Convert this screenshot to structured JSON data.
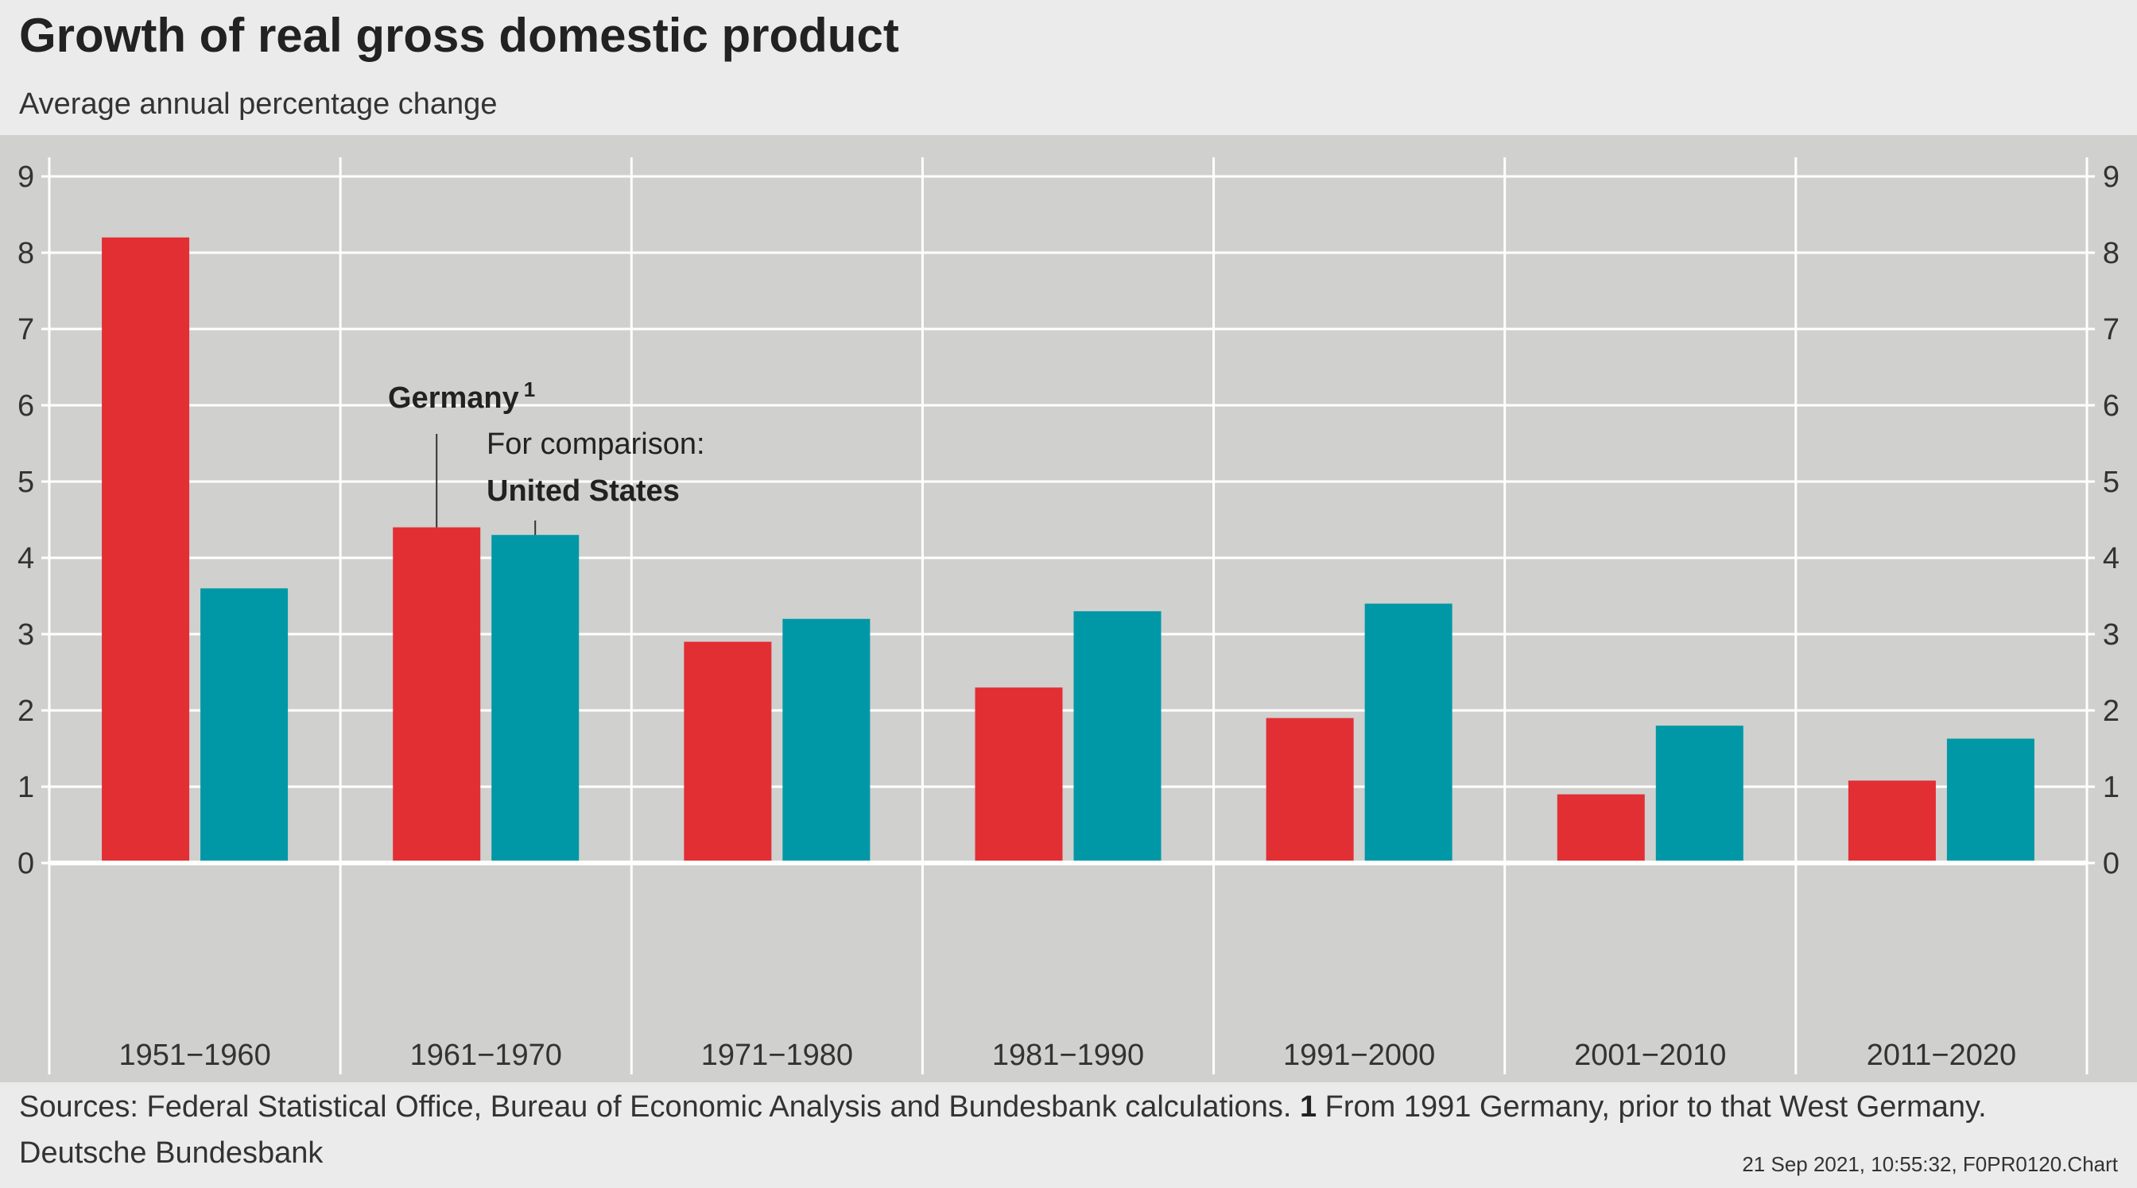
{
  "header": {
    "title": "Growth of real gross domestic product",
    "subtitle": "Average annual percentage change"
  },
  "footer": {
    "sources_text": "Sources: Federal Statistical Office, Bureau of Economic Analysis and Bundesbank calculations.",
    "footnote_marker": "1",
    "footnote_text": "From 1991 Germany, prior to that West Germany.",
    "publisher": "Deutsche Bundesbank",
    "timestamp": "21 Sep 2021, 10:55:32, F0PR0120.Chart"
  },
  "annotations": {
    "germany_label": "Germany",
    "germany_sup": "1",
    "comparison_label": "For comparison:",
    "us_label": "United States"
  },
  "colors": {
    "germany": "#e22f34",
    "united_states": "#0098a6",
    "plot_background": "#d0d0ce",
    "page_background": "#ebebeb",
    "gridline": "#ffffff"
  },
  "chart_data": {
    "type": "bar",
    "title": "Growth of real gross domestic product",
    "subtitle": "Average annual percentage change",
    "categories": [
      "1951−1960",
      "1961−1970",
      "1971−1980",
      "1981−1990",
      "1991−2000",
      "2001−2010",
      "2011−2020"
    ],
    "series": [
      {
        "name": "Germany",
        "values": [
          8.2,
          4.4,
          2.9,
          2.3,
          1.9,
          0.9,
          1.08
        ]
      },
      {
        "name": "United States",
        "values": [
          3.6,
          4.3,
          3.2,
          3.3,
          3.4,
          1.8,
          1.63
        ]
      }
    ],
    "ylim": [
      0,
      9
    ],
    "yticks": [
      0,
      1,
      2,
      3,
      4,
      5,
      6,
      7,
      8,
      9
    ],
    "axis_labels_both_sides": true,
    "grid": true
  }
}
